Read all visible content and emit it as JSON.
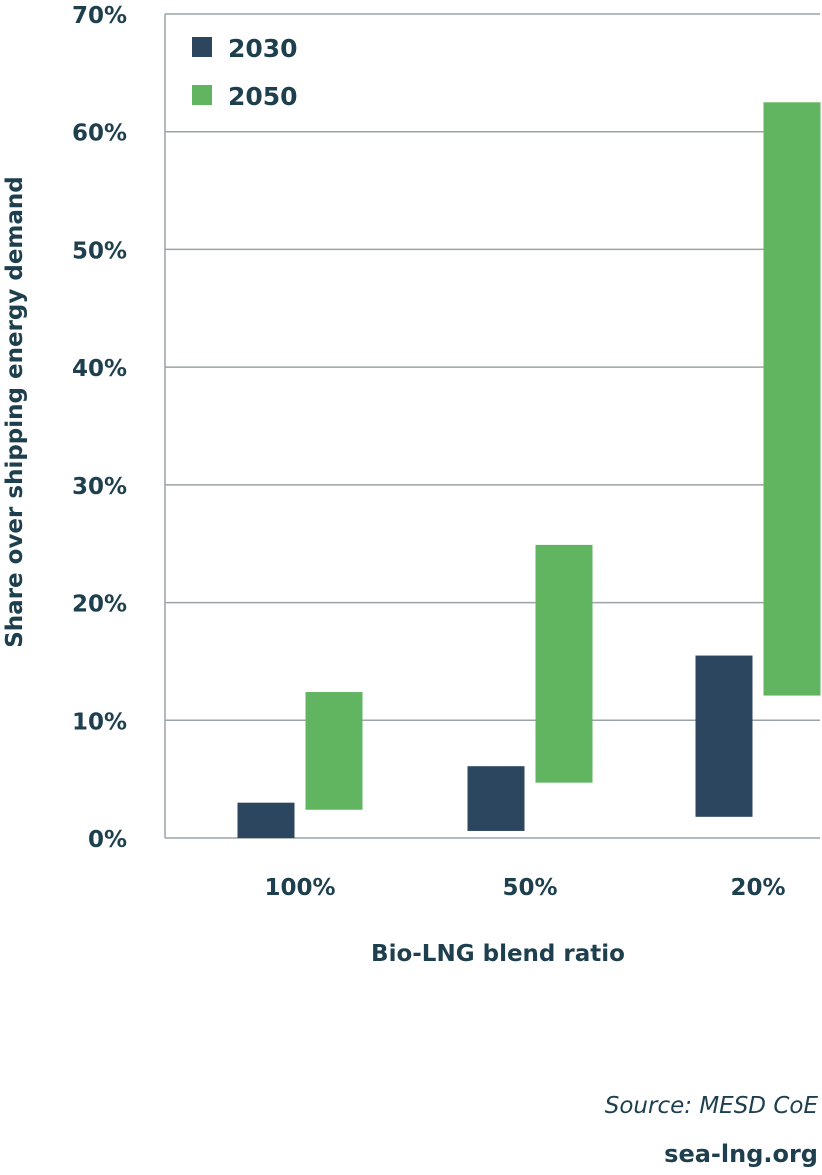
{
  "chart_data": {
    "type": "bar",
    "subtype": "floating-range",
    "title": "",
    "xlabel": "Bio-LNG blend ratio",
    "ylabel": "Share over shipping energy demand",
    "ylim": [
      0,
      70
    ],
    "yticks": [
      "0%",
      "10%",
      "20%",
      "30%",
      "40%",
      "50%",
      "60%",
      "70%"
    ],
    "ytick_values": [
      0,
      10,
      20,
      30,
      40,
      50,
      60,
      70
    ],
    "grid": true,
    "legend_position": "top-left",
    "categories": [
      "100%",
      "50%",
      "20%"
    ],
    "series": [
      {
        "name": "2030",
        "color": "#2c4660",
        "low": [
          0,
          0.6,
          1.8
        ],
        "high": [
          3.0,
          6.1,
          15.5
        ]
      },
      {
        "name": "2050",
        "color": "#62b560",
        "low": [
          2.4,
          4.7,
          12.1
        ],
        "high": [
          12.4,
          24.9,
          62.5
        ]
      }
    ]
  },
  "footer": {
    "source": "Source: MESD CoE",
    "site": "sea-lng.org"
  }
}
